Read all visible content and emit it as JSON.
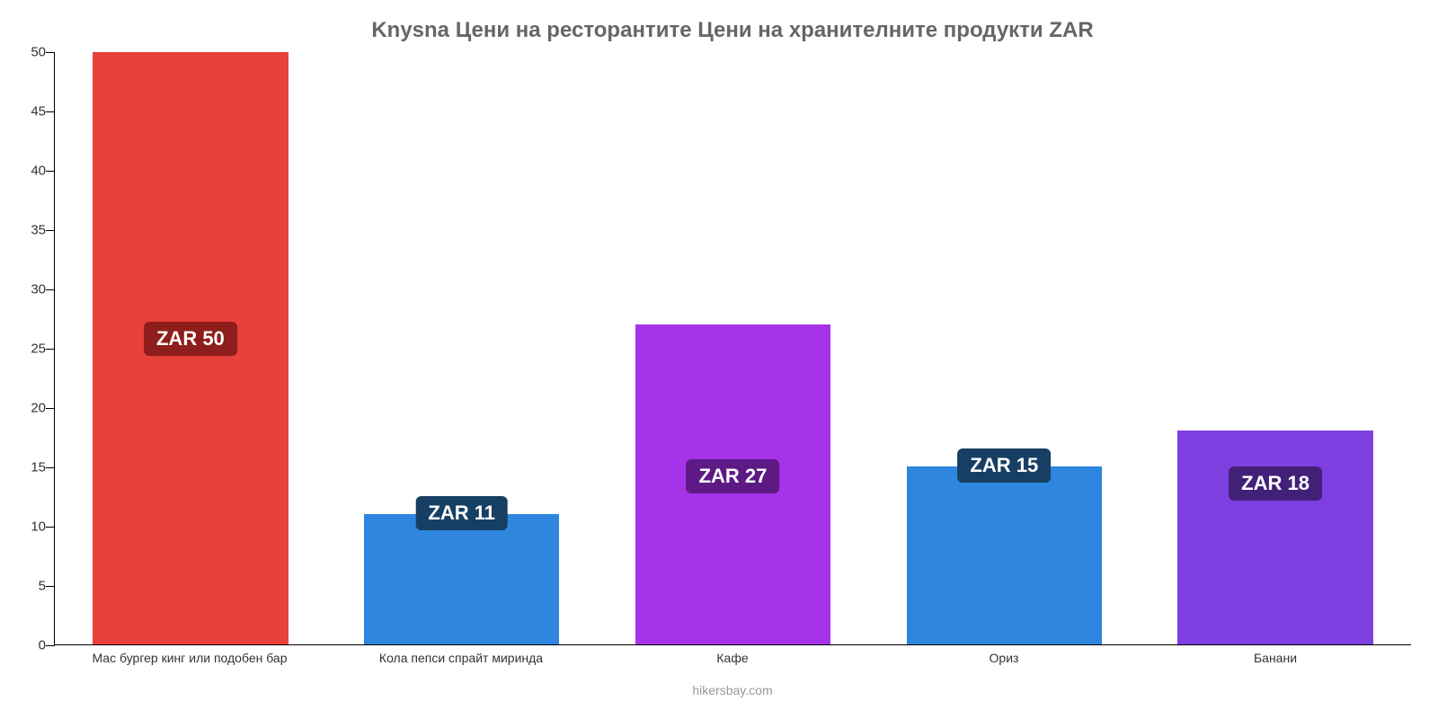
{
  "chart": {
    "type": "bar",
    "title": "Knysna Цени на ресторантите Цени на хранителните продукти ZAR",
    "title_color": "#666666",
    "title_fontsize": 24,
    "background_color": "#ffffff",
    "axis_color": "#000000",
    "xlabel_fontsize": 14,
    "ylabel_fontsize": 15,
    "ylim": [
      0,
      50
    ],
    "ytick_step": 5,
    "yticks": [
      0,
      5,
      10,
      15,
      20,
      25,
      30,
      35,
      40,
      45,
      50
    ],
    "bar_width_pct": 72,
    "categories": [
      "Мас бургер кинг или подобен бар",
      "Кола пепси спрайт миринда",
      "Кафе",
      "Ориз",
      "Банани"
    ],
    "values": [
      50,
      11,
      27,
      15,
      18
    ],
    "value_labels": [
      "ZAR 50",
      "ZAR 11",
      "ZAR 27",
      "ZAR 15",
      "ZAR 18"
    ],
    "bar_colors": [
      "#e8403b",
      "#2e86de",
      "#a633e8",
      "#2e86de",
      "#7e3fe0"
    ],
    "badge_bg_colors": [
      "#8e1e1b",
      "#173f63",
      "#5d1a85",
      "#173f63",
      "#432078"
    ],
    "badge_text_color": "#ffffff",
    "badge_fontsize": 22,
    "badge_offsets_from_top_of_bar": [
      300,
      -20,
      150,
      -20,
      40
    ],
    "attribution": "hikersbay.com",
    "attribution_color": "#999999"
  }
}
